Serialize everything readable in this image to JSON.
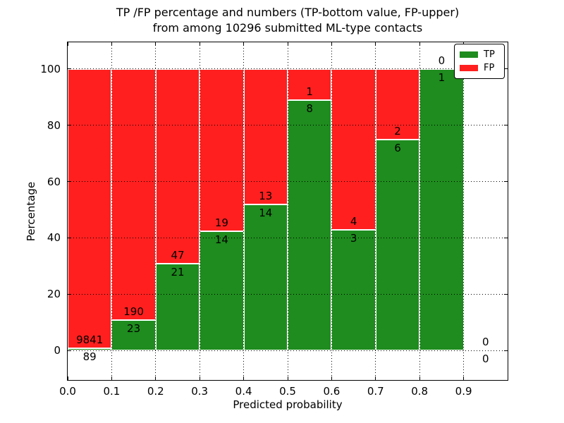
{
  "title": {
    "line1": "TP /FP percentage and numbers (TP-bottom value, FP-upper)",
    "line2": "from among 10296 submitted ML-type contacts"
  },
  "axes": {
    "xlabel": "Predicted probability",
    "ylabel": "Percentage",
    "yticks": [
      0,
      20,
      40,
      60,
      80,
      100
    ],
    "xtick_labels": [
      "0.0",
      "0.1",
      "0.2",
      "0.3",
      "0.4",
      "0.5",
      "0.6",
      "0.7",
      "0.8",
      "0.9"
    ]
  },
  "legend": {
    "items": [
      {
        "label": "TP",
        "color": "#1e8c1e"
      },
      {
        "label": "FP",
        "color": "#ff1f1f"
      }
    ],
    "position": "upper right"
  },
  "colors": {
    "tp_green": "#1e8c1e",
    "fp_red": "#ff1f1f",
    "background": "#ffffff",
    "grid": "#000000"
  },
  "chart_data": {
    "type": "bar",
    "stacked": true,
    "normalized_to_percent": true,
    "title": "TP /FP percentage and numbers (TP-bottom value, FP-upper) from among 10296 submitted ML-type contacts",
    "xlabel": "Predicted probability",
    "ylabel": "Percentage",
    "total_submitted_contacts": 10296,
    "bin_width": 0.1,
    "bin_starts": [
      0.0,
      0.1,
      0.2,
      0.3,
      0.4,
      0.5,
      0.6,
      0.7,
      0.8,
      0.9
    ],
    "series": [
      {
        "name": "TP",
        "color": "#1e8c1e",
        "values": [
          89,
          23,
          21,
          14,
          14,
          8,
          3,
          6,
          1,
          0
        ]
      },
      {
        "name": "FP",
        "color": "#ff1f1f",
        "values": [
          9841,
          190,
          47,
          19,
          13,
          1,
          4,
          2,
          0,
          0
        ]
      }
    ],
    "tp_percent_by_bin": [
      0.9,
      10.8,
      30.9,
      42.4,
      51.9,
      88.9,
      42.9,
      75.0,
      100.0,
      null
    ],
    "xlim": [
      0.0,
      1.0
    ],
    "ylim": [
      -10.5,
      109.5
    ],
    "grid": "dotted",
    "legend_position": "upper right",
    "label_note": "FP count printed above TP/FP boundary, TP count printed below it"
  }
}
